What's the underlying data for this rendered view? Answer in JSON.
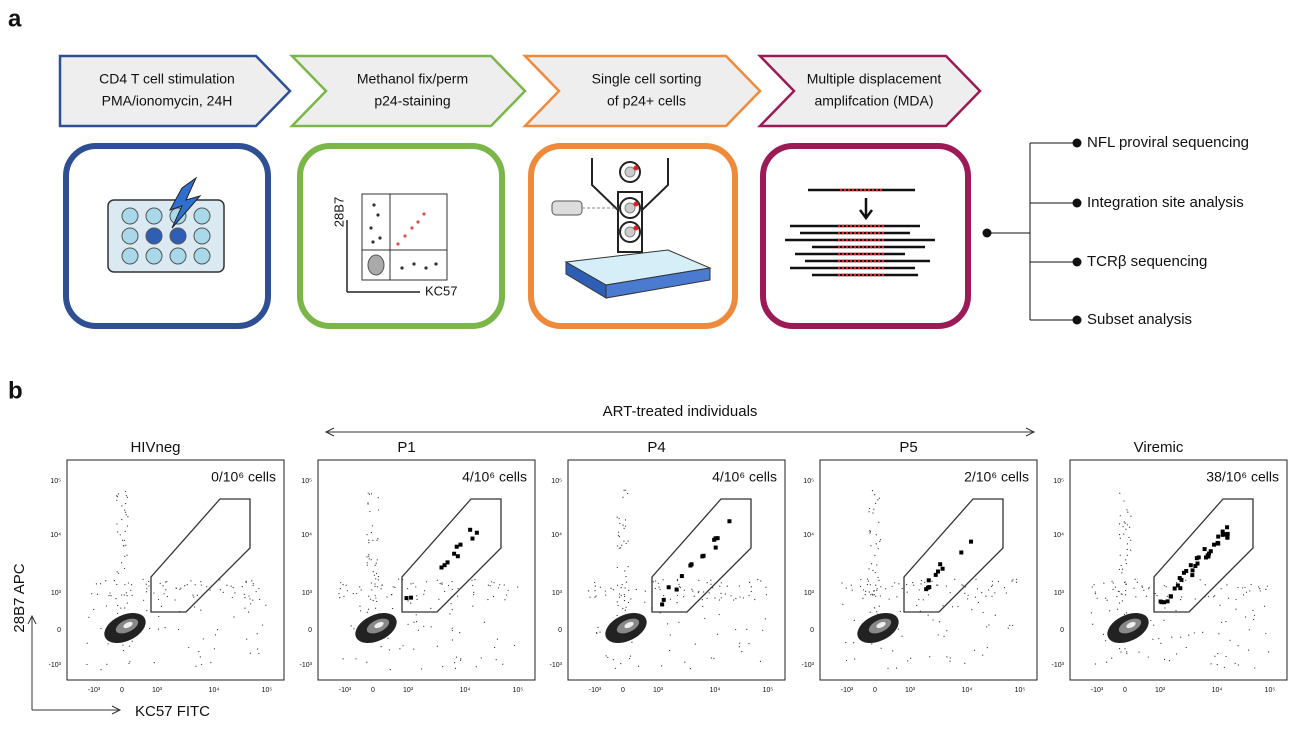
{
  "panel_a": {
    "label": "a",
    "steps": [
      {
        "lines": [
          "CD4 T cell stimulation",
          "PMA/ionomycin, 24H"
        ]
      },
      {
        "lines": [
          "Methanol fix/perm",
          "p24-staining"
        ]
      },
      {
        "lines": [
          "Single cell sorting",
          "of p24+ cells"
        ]
      },
      {
        "lines": [
          "Multiple displacement",
          "amplifcation (MDA)"
        ]
      }
    ],
    "gate_axes": {
      "y": "28B7",
      "x": "KC57"
    },
    "outputs": [
      "NFL proviral sequencing",
      "Integration site analysis",
      "TCRβ sequencing",
      "Subset analysis"
    ]
  },
  "panel_b": {
    "label": "b",
    "group_label": "ART-treated individuals",
    "plots": [
      {
        "title": "HIVneg",
        "count": "0/10⁶ cells"
      },
      {
        "title": "P1",
        "count": "4/10⁶ cells"
      },
      {
        "title": "P4",
        "count": "4/10⁶ cells"
      },
      {
        "title": "P5",
        "count": "2/10⁶ cells"
      },
      {
        "title": "Viremic",
        "count": "38/10⁶ cells"
      }
    ],
    "y_ticks": [
      "10⁵",
      "10⁴",
      "10³",
      "0",
      "-10³"
    ],
    "x_ticks": [
      "-10³",
      "0",
      "10³",
      "10⁴",
      "10⁵"
    ],
    "y_axis": "28B7 APC",
    "x_axis": "KC57 FITC"
  }
}
